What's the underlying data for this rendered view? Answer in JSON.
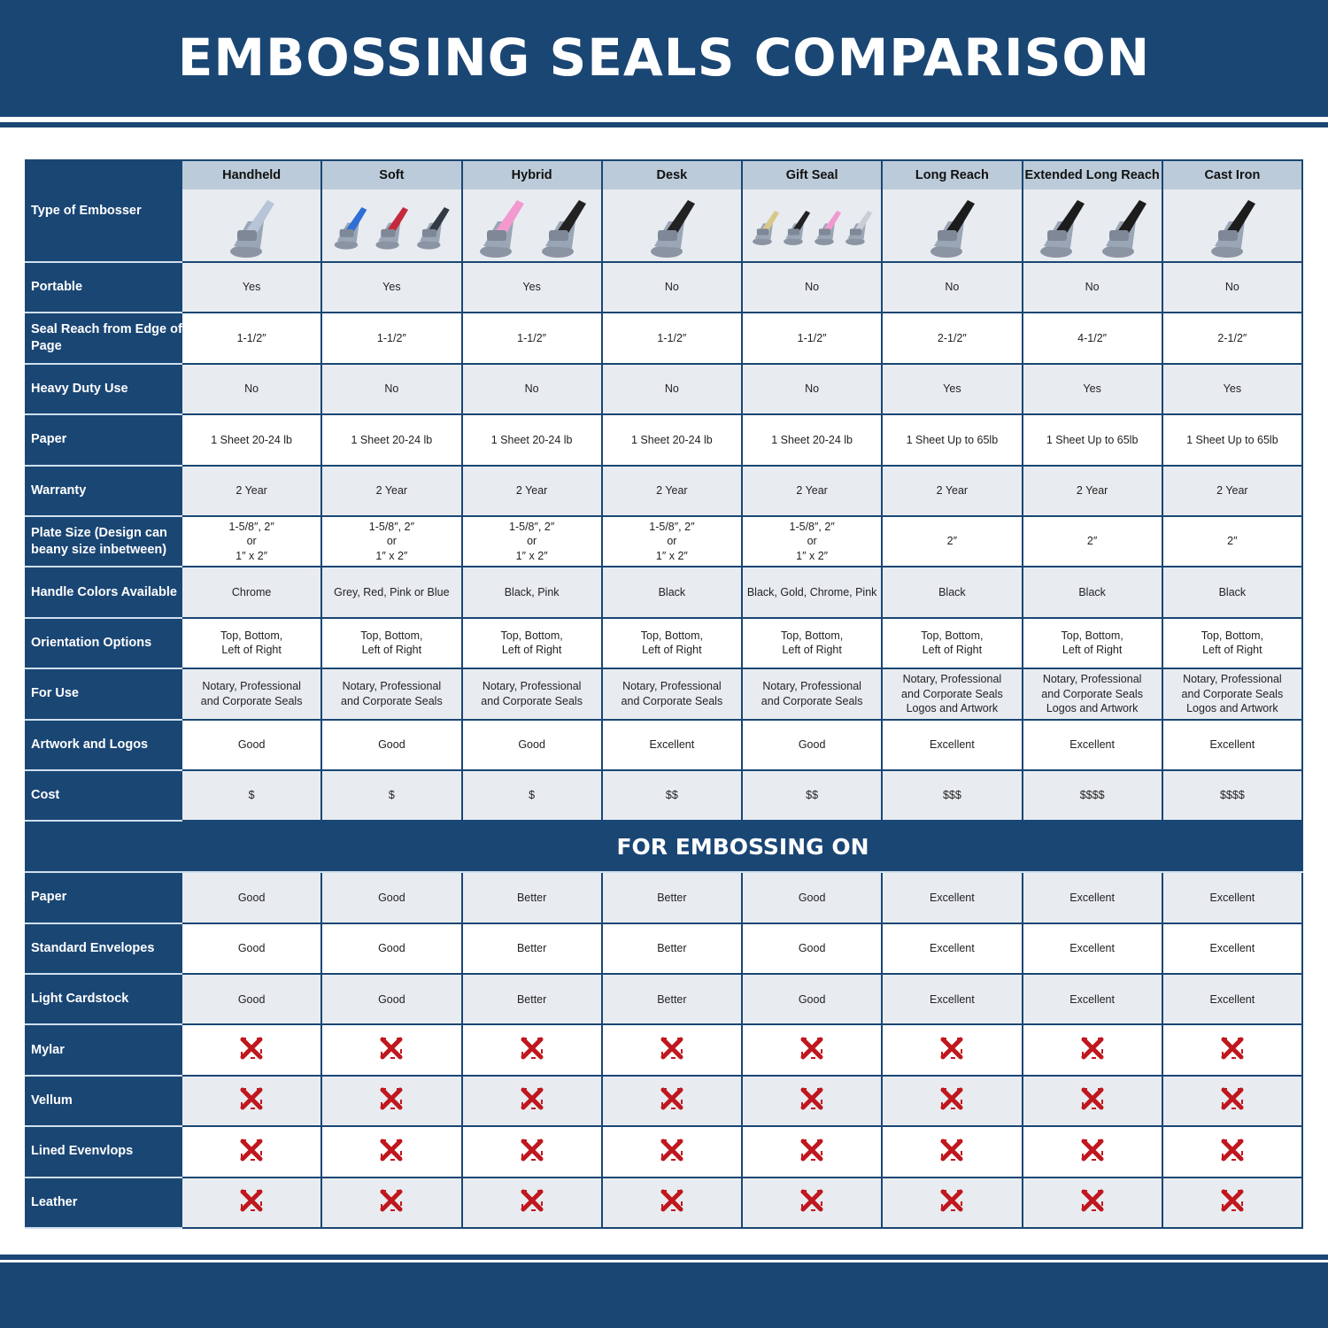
{
  "title": "EMBOSSING SEALS COMPARISON",
  "colors": {
    "brand": "#1a4674",
    "header_cell": "#bccbd9",
    "stripe": "#e8ecf0",
    "x_mark": "#c0171e"
  },
  "header_label": "Type of Embosser",
  "columns": [
    {
      "name": "Handheld",
      "handle_colors": [
        "#b8c4d8"
      ]
    },
    {
      "name": "Soft",
      "handle_colors": [
        "#2f6fd6",
        "#c42a3c",
        "#333a44"
      ]
    },
    {
      "name": "Hybrid",
      "handle_colors": [
        "#f29ad0",
        "#222222"
      ]
    },
    {
      "name": "Desk",
      "handle_colors": [
        "#222222"
      ]
    },
    {
      "name": "Gift Seal",
      "handle_colors": [
        "#d8c98a",
        "#222222",
        "#f29ad0",
        "#c9ced6"
      ]
    },
    {
      "name": "Long Reach",
      "handle_colors": [
        "#1c1c1c"
      ]
    },
    {
      "name": "Extended Long Reach",
      "handle_colors": [
        "#1c1c1c",
        "#1c1c1c"
      ]
    },
    {
      "name": "Cast Iron",
      "handle_colors": [
        "#1c1c1c"
      ]
    }
  ],
  "rows": [
    {
      "label": "Portable",
      "values": [
        "Yes",
        "Yes",
        "Yes",
        "No",
        "No",
        "No",
        "No",
        "No"
      ]
    },
    {
      "label": "Seal Reach from Edge of Page",
      "values": [
        "1-1/2″",
        "1-1/2″",
        "1-1/2″",
        "1-1/2″",
        "1-1/2″",
        "2-1/2″",
        "4-1/2″",
        "2-1/2″"
      ]
    },
    {
      "label": "Heavy Duty Use",
      "values": [
        "No",
        "No",
        "No",
        "No",
        "No",
        "Yes",
        "Yes",
        "Yes"
      ]
    },
    {
      "label": "Paper",
      "values": [
        "1 Sheet 20-24 lb",
        "1 Sheet 20-24 lb",
        "1 Sheet 20-24 lb",
        "1 Sheet 20-24 lb",
        "1 Sheet 20-24 lb",
        "1 Sheet Up to 65lb",
        "1 Sheet Up to 65lb",
        "1 Sheet Up to 65lb"
      ]
    },
    {
      "label": "Warranty",
      "values": [
        "2 Year",
        "2 Year",
        "2 Year",
        "2 Year",
        "2 Year",
        "2 Year",
        "2 Year",
        "2 Year"
      ]
    },
    {
      "label": "Plate Size (Design can beany size inbetween)",
      "values": [
        "1-5/8″, 2″\nor\n1″ x 2″",
        "1-5/8″, 2″\nor\n1″ x 2″",
        "1-5/8″, 2″\nor\n1″ x 2″",
        "1-5/8″, 2″\nor\n1″ x 2″",
        "1-5/8″, 2″\nor\n1″ x 2″",
        "2″",
        "2″",
        "2″"
      ]
    },
    {
      "label": "Handle Colors Available",
      "values": [
        "Chrome",
        "Grey, Red, Pink or Blue",
        "Black, Pink",
        "Black",
        "Black, Gold, Chrome, Pink",
        "Black",
        "Black",
        "Black"
      ]
    },
    {
      "label": "Orientation Options",
      "values": [
        "Top, Bottom,\nLeft of Right",
        "Top, Bottom,\nLeft of Right",
        "Top, Bottom,\nLeft of Right",
        "Top, Bottom,\nLeft of Right",
        "Top, Bottom,\nLeft of Right",
        "Top, Bottom,\nLeft of Right",
        "Top, Bottom,\nLeft of Right",
        "Top, Bottom,\nLeft of Right"
      ]
    },
    {
      "label": "For Use",
      "values": [
        "Notary, Professional\nand Corporate Seals",
        "Notary, Professional\nand Corporate Seals",
        "Notary, Professional\nand Corporate Seals",
        "Notary, Professional\nand Corporate Seals",
        "Notary, Professional\nand Corporate Seals",
        "Notary, Professional\nand Corporate Seals\nLogos and Artwork",
        "Notary, Professional\nand Corporate Seals\nLogos and Artwork",
        "Notary, Professional\nand Corporate Seals\nLogos and Artwork"
      ]
    },
    {
      "label": "Artwork and Logos",
      "values": [
        "Good",
        "Good",
        "Good",
        "Excellent",
        "Good",
        "Excellent",
        "Excellent",
        "Excellent"
      ]
    },
    {
      "label": "Cost",
      "values": [
        "$",
        "$",
        "$",
        "$$",
        "$$",
        "$$$",
        "$$$$",
        "$$$$"
      ]
    }
  ],
  "section_title": "FOR EMBOSSING ON",
  "section_rows": [
    {
      "label": "Paper",
      "values": [
        "Good",
        "Good",
        "Better",
        "Better",
        "Good",
        "Excellent",
        "Excellent",
        "Excellent"
      ]
    },
    {
      "label": "Standard Envelopes",
      "values": [
        "Good",
        "Good",
        "Better",
        "Better",
        "Good",
        "Excellent",
        "Excellent",
        "Excellent"
      ]
    },
    {
      "label": "Light Cardstock",
      "values": [
        "Good",
        "Good",
        "Better",
        "Better",
        "Good",
        "Excellent",
        "Excellent",
        "Excellent"
      ]
    },
    {
      "label": "Mylar",
      "icon": "x-mark-icon"
    },
    {
      "label": "Vellum",
      "icon": "x-mark-icon"
    },
    {
      "label": "Lined Evenvlops",
      "icon": "x-mark-icon"
    },
    {
      "label": "Leather",
      "icon": "x-mark-icon"
    }
  ]
}
